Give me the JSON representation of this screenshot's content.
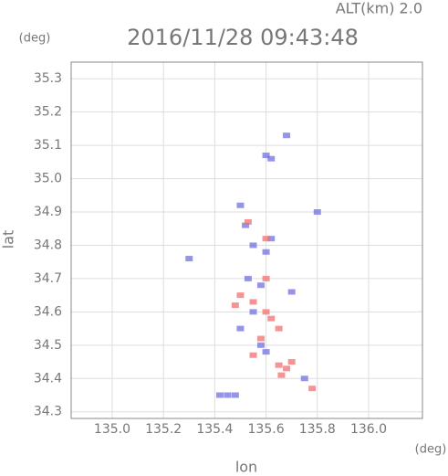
{
  "chart_data": {
    "type": "scatter",
    "title": "2016/11/28 09:43:48",
    "subtitle": "ALT(km) 2.0",
    "x_label": "lon",
    "x_unit": "(deg)",
    "y_label": "lat",
    "y_unit": "(deg)",
    "xlim": [
      134.84,
      136.21
    ],
    "ylim": [
      34.28,
      35.35
    ],
    "xticks": [
      {
        "value": 135,
        "label": "135.0"
      },
      135.2,
      135.4,
      135.6,
      135.8,
      {
        "value": 136,
        "label": "136.0"
      }
    ],
    "yticks": [
      34.3,
      34.4,
      34.5,
      34.6,
      34.7,
      34.8,
      34.9,
      {
        "value": 35,
        "label": "35.0"
      },
      35.1,
      35.2,
      35.3
    ],
    "grid": true,
    "series": [
      {
        "color": "#7070e0",
        "x": [
          135.68,
          135.6,
          135.62,
          135.8,
          135.5,
          135.52,
          135.55,
          135.6,
          135.53,
          135.58,
          135.55,
          135.5,
          135.58,
          135.6,
          135.45,
          135.48,
          135.42,
          135.75,
          135.3,
          135.62,
          135.7
        ],
        "values": [
          35.13,
          35.07,
          35.06,
          34.9,
          34.92,
          34.86,
          34.8,
          34.78,
          34.7,
          34.68,
          34.6,
          34.55,
          34.5,
          34.48,
          34.35,
          34.35,
          34.35,
          34.4,
          34.76,
          34.82,
          34.66
        ]
      },
      {
        "color": "#f07070",
        "x": [
          135.53,
          135.6,
          135.5,
          135.55,
          135.6,
          135.62,
          135.58,
          135.55,
          135.65,
          135.68,
          135.66,
          135.7,
          135.78,
          135.48,
          135.6,
          135.65
        ],
        "values": [
          34.87,
          34.82,
          34.65,
          34.63,
          34.6,
          34.58,
          34.52,
          34.47,
          34.44,
          34.43,
          34.41,
          34.45,
          34.37,
          34.62,
          34.7,
          34.55
        ]
      }
    ]
  }
}
